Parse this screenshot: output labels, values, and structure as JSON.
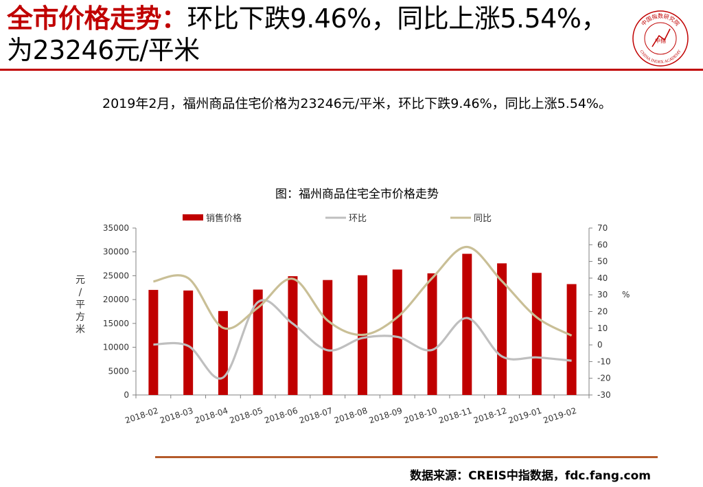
{
  "slide": {
    "title_main": "全市价格走势：",
    "title_rest": "环比下跌9.46%，同比上涨5.54%，为23246元/平米",
    "summary": "2019年2月，福州商品住宅价格为23246元/平米，环比下跌9.46%，同比上涨5.54%。",
    "source": "数据来源：CREIS中指数据，fdc.fang.com"
  },
  "logo": {
    "name": "china-index-academy-seal",
    "text_top": "中国指数研究院",
    "text_bottom": "CHINA INDEX ACADEMY",
    "text_center": "中指",
    "color": "#c00000"
  },
  "colors": {
    "accent": "#c00000",
    "bar": "#c00000",
    "mom": "#bfbfbf",
    "yoy": "#c9bf96",
    "source_rule": "#b45a2a"
  },
  "chart_data": {
    "type": "bar",
    "title": "图：福州商品住宅全市价格走势",
    "categories": [
      "2018-02",
      "2018-03",
      "2018-04",
      "2018-05",
      "2018-06",
      "2018-07",
      "2018-08",
      "2018-09",
      "2018-10",
      "2018-11",
      "2018-12",
      "2019-01",
      "2019-02"
    ],
    "ylabel": "元/平方米",
    "y2label": "%",
    "ylim": [
      0,
      35000
    ],
    "y2lim": [
      -30,
      70
    ],
    "yticks": [
      0,
      5000,
      10000,
      15000,
      20000,
      25000,
      30000,
      35000
    ],
    "y2ticks": [
      -30,
      -20,
      -10,
      0,
      10,
      20,
      30,
      40,
      50,
      60,
      70
    ],
    "legend_position": "top",
    "grid": false,
    "series": [
      {
        "name": "销售价格",
        "type": "bar",
        "axis": "left",
        "values": [
          22027,
          21900,
          17600,
          22100,
          24900,
          24100,
          25100,
          26300,
          25500,
          29600,
          27600,
          25600,
          23246
        ]
      },
      {
        "name": "环比",
        "type": "line",
        "axis": "right",
        "values": [
          0.2,
          -0.6,
          -19.6,
          25.6,
          12.7,
          -3.2,
          4.1,
          4.8,
          -3.0,
          16.1,
          -6.9,
          -7.5,
          -9.46
        ]
      },
      {
        "name": "同比",
        "type": "line",
        "axis": "right",
        "values": [
          38.0,
          40.0,
          10.2,
          22.3,
          39.6,
          14.6,
          6.0,
          16.6,
          40.0,
          58.7,
          38.2,
          16.5,
          5.54
        ]
      }
    ]
  }
}
